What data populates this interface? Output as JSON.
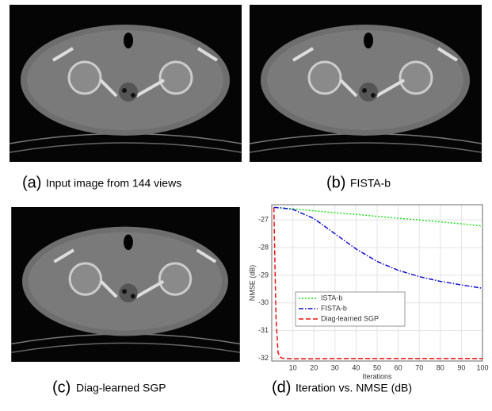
{
  "panels": [
    {
      "label": "(a)",
      "caption": "Input image from 144 views"
    },
    {
      "label": "(b)",
      "caption": "FISTA-b"
    },
    {
      "label": "(c)",
      "caption": "Diag-learned SGP"
    },
    {
      "label": "(d)",
      "caption": "Iteration vs. NMSE (dB)"
    }
  ],
  "chart_data": {
    "type": "line",
    "xlabel": "Iterations",
    "ylabel": "NMSE (dB)",
    "x": [
      1,
      2,
      3,
      4,
      5,
      10,
      20,
      30,
      40,
      50,
      60,
      70,
      80,
      90,
      100
    ],
    "series": [
      {
        "name": "ISTA-b",
        "color": "#22dd22",
        "dash": "2,2",
        "values": [
          -26.55,
          -26.56,
          -26.56,
          -26.57,
          -26.57,
          -26.6,
          -26.67,
          -26.74,
          -26.8,
          -26.87,
          -26.94,
          -27.0,
          -27.07,
          -27.14,
          -27.22
        ]
      },
      {
        "name": "FISTA-b",
        "color": "#1010cc",
        "dash": "6,2,1.5,2",
        "values": [
          -26.55,
          -26.55,
          -26.56,
          -26.56,
          -26.57,
          -26.62,
          -26.95,
          -27.5,
          -28.05,
          -28.5,
          -28.82,
          -29.05,
          -29.22,
          -29.35,
          -29.47
        ]
      },
      {
        "name": "Diag-learned SGP",
        "color": "#ee1111",
        "dash": "6,3",
        "values": [
          -26.55,
          -30.5,
          -31.8,
          -31.95,
          -32.0,
          -32.02,
          -32.02,
          -32.01,
          -32.01,
          -32.01,
          -32.01,
          -32.01,
          -32.01,
          -32.01,
          -32.01
        ]
      }
    ],
    "xlim": [
      0,
      100
    ],
    "xticks": [
      10,
      20,
      30,
      40,
      50,
      60,
      70,
      80,
      90,
      100
    ],
    "ylim": [
      -32.1,
      -26.45
    ],
    "yticks": [
      -32,
      -31,
      -30,
      -29,
      -28,
      -27
    ],
    "grid": true,
    "legend": "center left"
  }
}
